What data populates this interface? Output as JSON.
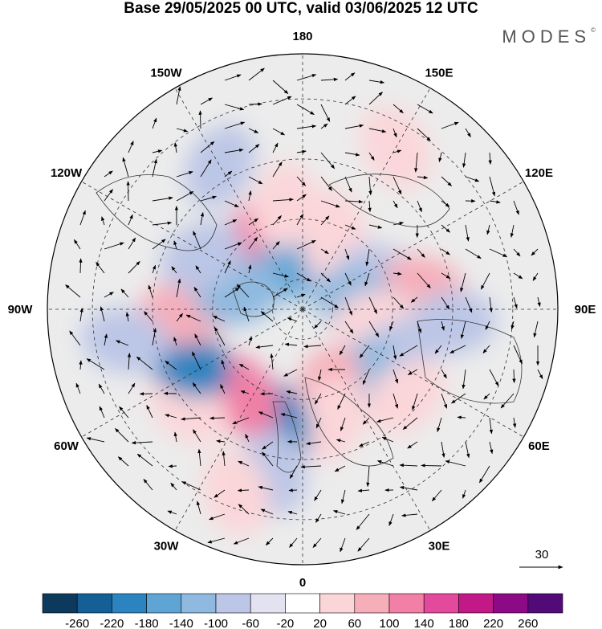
{
  "title": "Base 29/05/2025 00 UTC, valid 03/06/2025 12 UTC",
  "brand": "MODES",
  "brand_mark": "©",
  "longitude_labels": [
    {
      "text": "180",
      "deg": 180
    },
    {
      "text": "150E",
      "deg": 150
    },
    {
      "text": "120E",
      "deg": 120
    },
    {
      "text": "90E",
      "deg": 90
    },
    {
      "text": "60E",
      "deg": 60
    },
    {
      "text": "30E",
      "deg": 30
    },
    {
      "text": "0",
      "deg": 0
    },
    {
      "text": "30W",
      "deg": -30
    },
    {
      "text": "60W",
      "deg": -60
    },
    {
      "text": "90W",
      "deg": -90
    },
    {
      "text": "120W",
      "deg": -120
    },
    {
      "text": "150W",
      "deg": -150
    }
  ],
  "latitude_circles": [
    80,
    60,
    40,
    20
  ],
  "vector_reference": {
    "value": 30,
    "label": "30"
  },
  "colorbar": {
    "ticks": [
      "-260",
      "-220",
      "-180",
      "-140",
      "-100",
      "-60",
      "-20",
      "20",
      "60",
      "100",
      "140",
      "180",
      "220",
      "260"
    ],
    "colors": [
      "#0d3a5c",
      "#135f96",
      "#2b84c0",
      "#5ea5d5",
      "#8fb9df",
      "#bcc6e6",
      "#e2e2f1",
      "#ffffff",
      "#fbd6d9",
      "#f6aeb9",
      "#f17fa6",
      "#e34a9c",
      "#c11a87",
      "#8c0a86",
      "#520a78"
    ]
  },
  "anomaly_blobs": [
    {
      "lat": 62,
      "lon": -150,
      "value": 140
    },
    {
      "lat": 72,
      "lon": -170,
      "value": -160
    },
    {
      "lat": 55,
      "lon": -170,
      "value": 60
    },
    {
      "lat": 62,
      "lon": 158,
      "value": 60
    },
    {
      "lat": 70,
      "lon": 140,
      "value": 60
    },
    {
      "lat": 62,
      "lon": 112,
      "value": -60
    },
    {
      "lat": 50,
      "lon": 100,
      "value": 100
    },
    {
      "lat": 72,
      "lon": 100,
      "value": -100
    },
    {
      "lat": 65,
      "lon": 80,
      "value": 60
    },
    {
      "lat": 40,
      "lon": 85,
      "value": -60
    },
    {
      "lat": 55,
      "lon": 65,
      "value": -60
    },
    {
      "lat": 60,
      "lon": 40,
      "value": -100
    },
    {
      "lat": 45,
      "lon": 50,
      "value": 60
    },
    {
      "lat": 62,
      "lon": 18,
      "value": 100
    },
    {
      "lat": 52,
      "lon": 15,
      "value": 60
    },
    {
      "lat": 50,
      "lon": -12,
      "value": -180
    },
    {
      "lat": 35,
      "lon": -10,
      "value": -60
    },
    {
      "lat": 55,
      "lon": -35,
      "value": 140
    },
    {
      "lat": 40,
      "lon": -50,
      "value": 60
    },
    {
      "lat": 48,
      "lon": -65,
      "value": -180
    },
    {
      "lat": 50,
      "lon": -88,
      "value": 100
    },
    {
      "lat": 68,
      "lon": -105,
      "value": -100
    },
    {
      "lat": 52,
      "lon": -118,
      "value": -60
    },
    {
      "lat": 25,
      "lon": -20,
      "value": 60
    },
    {
      "lat": 30,
      "lon": -80,
      "value": -60
    },
    {
      "lat": 28,
      "lon": 150,
      "value": 60
    },
    {
      "lat": 35,
      "lon": -150,
      "value": -60
    }
  ]
}
